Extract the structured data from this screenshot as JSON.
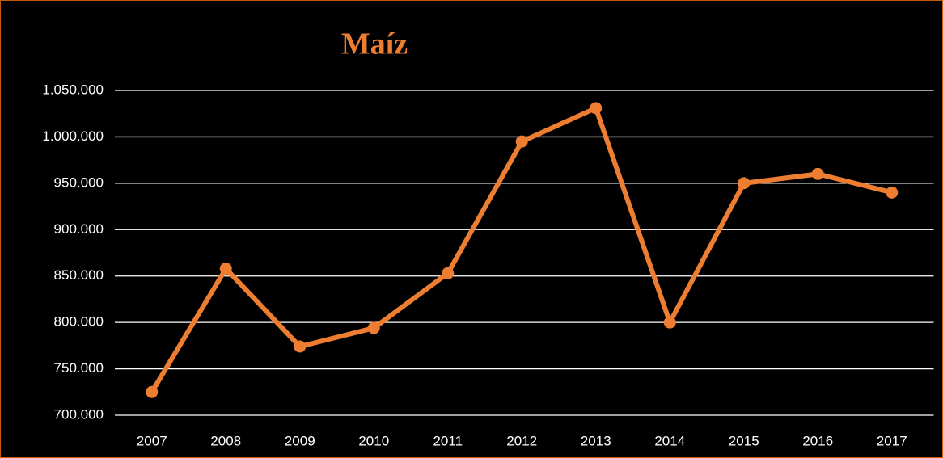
{
  "chart_data": {
    "type": "line",
    "title": "Maíz",
    "categories": [
      "2007",
      "2008",
      "2009",
      "2010",
      "2011",
      "2012",
      "2013",
      "2014",
      "2015",
      "2016",
      "2017"
    ],
    "values": [
      725000,
      858000,
      774000,
      794000,
      853000,
      995000,
      1031000,
      800000,
      950000,
      960000,
      940000
    ],
    "color": "#ed7d31",
    "ylim": [
      700000,
      1050000
    ],
    "yticks": [
      {
        "value": 700000,
        "label": "700.000"
      },
      {
        "value": 750000,
        "label": "750.000"
      },
      {
        "value": 800000,
        "label": "800.000"
      },
      {
        "value": 850000,
        "label": "850.000"
      },
      {
        "value": 900000,
        "label": "900.000"
      },
      {
        "value": 950000,
        "label": "950.000"
      },
      {
        "value": 1000000,
        "label": "1.000.000"
      },
      {
        "value": 1050000,
        "label": "1.050.000"
      }
    ],
    "grid": true
  }
}
